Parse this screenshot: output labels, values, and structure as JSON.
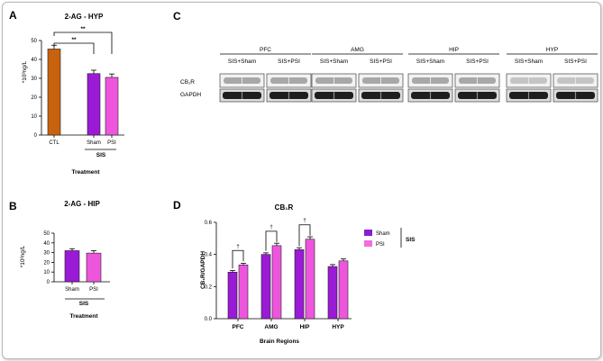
{
  "panels": {
    "A": "A",
    "B": "B",
    "C": "C",
    "D": "D"
  },
  "colors": {
    "ctl": "#c8620e",
    "sham": "#9a1ad6",
    "psi": "#ee55dd",
    "sham_legend": "#8a1bd0",
    "psi_legend": "#f06ee0"
  },
  "chart_data": [
    {
      "id": "A",
      "type": "bar",
      "title": "2-AG - HYP",
      "ylabel": "*10³ng/L",
      "xlabel": "Treatment",
      "group_label": "SIS",
      "categories": [
        "CTL",
        "Sham",
        "PSI"
      ],
      "values": [
        45.5,
        32.5,
        30.5
      ],
      "errors": [
        2.0,
        1.8,
        1.8
      ],
      "ylim": [
        0,
        50
      ],
      "yticks": [
        0,
        10,
        20,
        30,
        40,
        50
      ],
      "significance": [
        {
          "from": "CTL",
          "to": "Sham",
          "label": "**"
        },
        {
          "from": "CTL",
          "to": "PSI",
          "label": "**"
        }
      ]
    },
    {
      "id": "B",
      "type": "bar",
      "title": "2-AG - HIP",
      "ylabel": "*10³ng/L",
      "xlabel": "Treatment",
      "group_label": "SIS",
      "categories": [
        "Sham",
        "PSI"
      ],
      "values": [
        32,
        29.5
      ],
      "errors": [
        2.0,
        2.5
      ],
      "ylim": [
        0,
        50
      ],
      "yticks": [
        0,
        10,
        20,
        30,
        40,
        50
      ]
    },
    {
      "id": "D",
      "type": "bar",
      "title": "CB₁R",
      "ylabel": "CB₁R/GAPDH",
      "xlabel": "Brain Regions",
      "categories": [
        "PFC",
        "AMG",
        "HIP",
        "HYP"
      ],
      "series": [
        {
          "name": "Sham",
          "values": [
            0.29,
            0.4,
            0.43,
            0.325
          ],
          "errors": [
            0.01,
            0.01,
            0.012,
            0.012
          ]
        },
        {
          "name": "PSI",
          "values": [
            0.335,
            0.455,
            0.495,
            0.36
          ],
          "errors": [
            0.01,
            0.015,
            0.015,
            0.012
          ]
        }
      ],
      "legend_group": "SIS",
      "ylim": [
        0,
        0.6
      ],
      "yticks": [
        "0.0",
        "0.2",
        "0.4",
        "0.6"
      ],
      "significance": [
        {
          "category": "PFC",
          "label": "†"
        },
        {
          "category": "AMG",
          "label": "†"
        },
        {
          "category": "HIP",
          "label": "†"
        }
      ],
      "legend_position": "right"
    }
  ],
  "blot": {
    "regions": [
      {
        "name": "PFC",
        "lanes": [
          "SIS+Sham",
          "SIS+PSI"
        ]
      },
      {
        "name": "AMG",
        "lanes": [
          "SIS+Sham",
          "SIS+PSI"
        ]
      },
      {
        "name": "HIP",
        "lanes": [
          "SIS+Sham",
          "SIS+PSI"
        ]
      },
      {
        "name": "HYP",
        "lanes": [
          "SIS+Sham",
          "SIS+PSI"
        ]
      }
    ],
    "rows": [
      "CB₁R",
      "GAPDH"
    ]
  }
}
